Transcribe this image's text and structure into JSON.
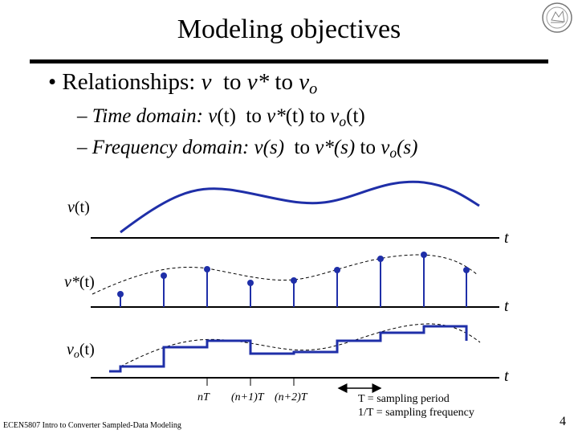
{
  "slide": {
    "title": "Modeling objectives",
    "bullet": {
      "marker": "•",
      "lead": "Relationships: ",
      "v": "v",
      "to1": "to",
      "vstar": "v*",
      "to2": "to",
      "vo_base": "v",
      "vo_sub": "o"
    },
    "sub_time": {
      "dash": "–",
      "lead": "Time domain: ",
      "v": "v",
      "v_arg": "(t)",
      "to1": "to",
      "vstar": "v*",
      "vstar_arg": "(t)",
      "to2": "to",
      "vo_base": "v",
      "vo_sub": "o",
      "vo_arg": "(t)"
    },
    "sub_freq": {
      "dash": "–",
      "lead": "Frequency domain: ",
      "v": "v",
      "v_arg": "(s)",
      "to1": "to",
      "vstar": "v*",
      "vstar_arg": "(s)",
      "to2": "to",
      "vo_base": "v",
      "vo_sub": "o",
      "vo_arg": "(s)"
    }
  },
  "figure": {
    "label_v": {
      "base": "v",
      "arg": "(t)"
    },
    "label_vstar": {
      "base": "v*",
      "arg": "(t)"
    },
    "label_vo": {
      "base": "v",
      "sub": "o",
      "arg": "(t)"
    },
    "axis_symbol": "t",
    "tick_nT": "nT",
    "tick_n1T": "(n+1)T",
    "tick_n2T": "(n+2)T",
    "note_period": "T = sampling period",
    "note_freq": "1/T = sampling frequency",
    "colors": {
      "signal": "#1f2fa8",
      "axis": "#000000",
      "dashed": "#000000"
    }
  },
  "footer": {
    "course": "ECEN5807 Intro to Converter Sampled-Data Modeling",
    "page": "4"
  }
}
